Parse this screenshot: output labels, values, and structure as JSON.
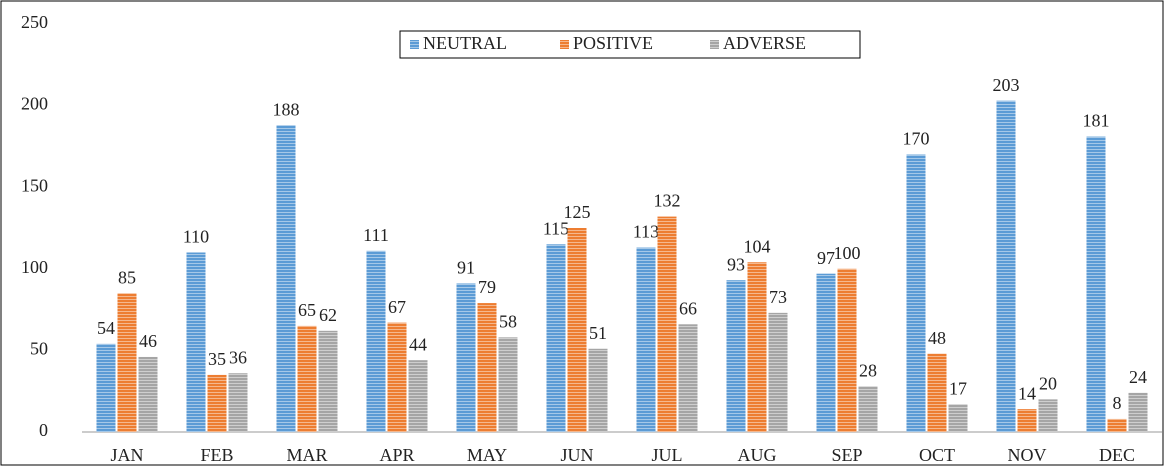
{
  "chart_data": {
    "type": "bar",
    "categories": [
      "JAN",
      "FEB",
      "MAR",
      "APR",
      "MAY",
      "JUN",
      "JUL",
      "AUG",
      "SEP",
      "OCT",
      "NOV",
      "DEC"
    ],
    "series": [
      {
        "name": "NEUTRAL",
        "color": "#5b9bd5",
        "values": [
          54,
          110,
          188,
          111,
          91,
          115,
          113,
          93,
          97,
          170,
          203,
          181
        ]
      },
      {
        "name": "POSITIVE",
        "color": "#ed7d31",
        "values": [
          85,
          35,
          65,
          67,
          79,
          125,
          132,
          104,
          100,
          48,
          14,
          8
        ]
      },
      {
        "name": "ADVERSE",
        "color": "#a5a5a5",
        "values": [
          46,
          36,
          62,
          44,
          58,
          51,
          66,
          73,
          28,
          17,
          20,
          24
        ]
      }
    ],
    "ylim": [
      0,
      250
    ],
    "yticks": [
      0,
      50,
      100,
      150,
      200,
      250
    ],
    "grid": false,
    "legend": "top"
  }
}
